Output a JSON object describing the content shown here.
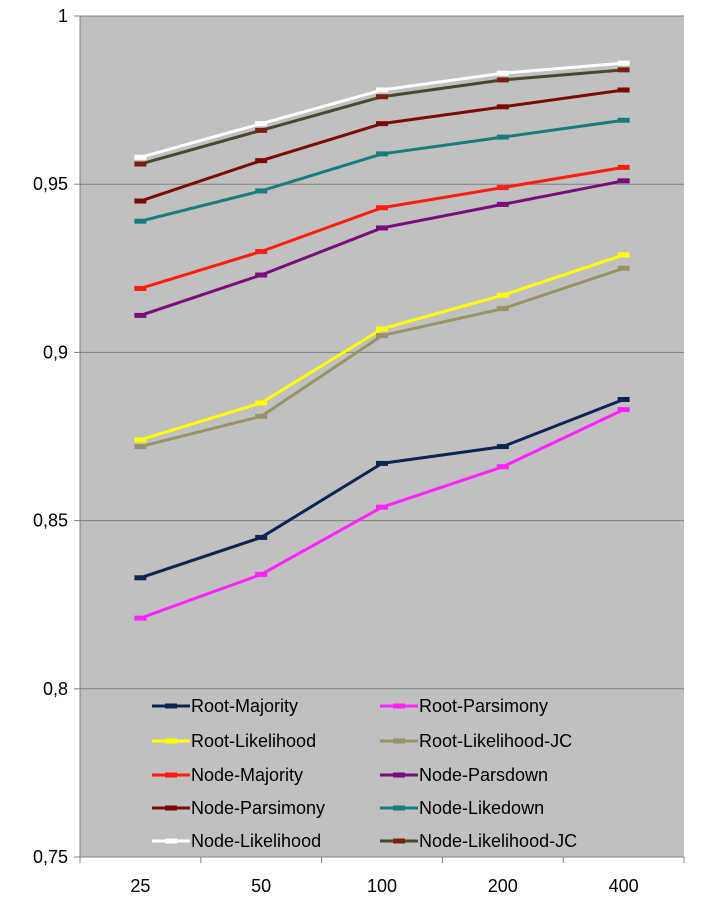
{
  "chart_data": {
    "type": "line",
    "title": "",
    "xlabel": "",
    "ylabel": "",
    "categories": [
      "25",
      "50",
      "100",
      "200",
      "400"
    ],
    "ylim": [
      0.75,
      1
    ],
    "y_ticks": [
      "0,75",
      "0,8",
      "0,85",
      "0,9",
      "0,95",
      "1"
    ],
    "grid": true,
    "plot_background": "#c0c0c0",
    "legend_position": "bottom-inside",
    "series": [
      {
        "name": "Root-Majority",
        "color": "#0b2454",
        "values": [
          0.833,
          0.845,
          0.867,
          0.872,
          0.886
        ]
      },
      {
        "name": "Root-Parsimony",
        "color": "#ff22ff",
        "values": [
          0.821,
          0.834,
          0.854,
          0.866,
          0.883
        ]
      },
      {
        "name": "Root-Likelihood",
        "color": "#ffff00",
        "values": [
          0.874,
          0.885,
          0.907,
          0.917,
          0.929
        ]
      },
      {
        "name": "Root-Likelihood-JC",
        "color": "#9a9166",
        "values": [
          0.872,
          0.881,
          0.905,
          0.913,
          0.925
        ]
      },
      {
        "name": "Node-Majority",
        "color": "#ff1b10",
        "values": [
          0.919,
          0.93,
          0.943,
          0.949,
          0.955
        ]
      },
      {
        "name": "Node-Parsdown",
        "color": "#780c7a",
        "values": [
          0.911,
          0.923,
          0.937,
          0.944,
          0.951
        ]
      },
      {
        "name": "Node-Parsimony",
        "color": "#7b0a05",
        "values": [
          0.945,
          0.957,
          0.968,
          0.973,
          0.978
        ]
      },
      {
        "name": "Node-Likedown",
        "color": "#177c7e",
        "values": [
          0.939,
          0.948,
          0.959,
          0.964,
          0.969
        ]
      },
      {
        "name": "Node-Likelihood",
        "color": "#ffffff",
        "values": [
          0.958,
          0.968,
          0.978,
          0.983,
          0.986
        ]
      },
      {
        "name": "Node-Likelihood-JC",
        "color": "#4b472d",
        "marker_color": "#7a1f10",
        "values": [
          0.956,
          0.966,
          0.976,
          0.981,
          0.984
        ]
      }
    ]
  }
}
